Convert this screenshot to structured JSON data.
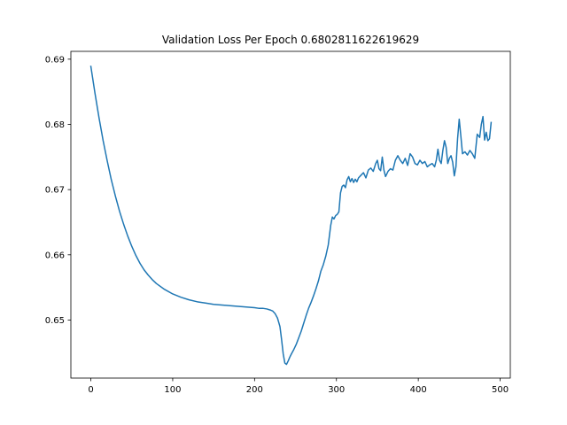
{
  "chart_data": {
    "type": "line",
    "title": "Validation Loss Per Epoch 0.6802811622619629",
    "xlabel": "",
    "ylabel": "",
    "xlim": [
      -24.4,
      512.4
    ],
    "ylim": [
      0.6411,
      0.6912
    ],
    "x_ticks": [
      0,
      100,
      200,
      300,
      400,
      500
    ],
    "x_tick_labels": [
      "0",
      "100",
      "200",
      "300",
      "400",
      "500"
    ],
    "y_ticks": [
      0.65,
      0.66,
      0.67,
      0.68,
      0.69
    ],
    "y_tick_labels": [
      "0.65",
      "0.66",
      "0.67",
      "0.68",
      "0.69"
    ],
    "grid": false,
    "line_color": "#1f77b4",
    "series": [
      {
        "x": [
          0,
          5,
          10,
          15,
          20,
          25,
          30,
          35,
          40,
          45,
          50,
          55,
          60,
          65,
          70,
          75,
          80,
          90,
          100,
          110,
          120,
          130,
          140,
          150,
          160,
          170,
          180,
          190,
          200,
          205,
          210,
          215,
          220,
          222,
          225,
          228,
          231,
          233,
          235,
          237,
          239,
          241,
          243,
          245,
          248,
          251,
          254,
          257,
          260,
          263,
          266,
          269,
          272,
          275,
          278,
          281,
          284,
          287,
          290,
          293,
          295,
          297,
          299,
          301,
          303,
          305,
          307,
          309,
          311,
          313,
          315,
          317,
          319,
          321,
          323,
          325,
          327,
          330,
          333,
          336,
          339,
          342,
          345,
          348,
          350,
          352,
          354,
          356,
          358,
          360,
          363,
          366,
          369,
          372,
          375,
          378,
          381,
          384,
          387,
          390,
          393,
          396,
          399,
          402,
          405,
          408,
          411,
          414,
          417,
          420,
          422,
          424,
          426,
          428,
          430,
          432,
          434,
          436,
          438,
          440,
          442,
          444,
          446,
          448,
          450,
          452,
          454,
          457,
          460,
          463,
          466,
          469,
          472,
          475,
          477,
          479,
          481,
          483,
          485,
          487,
          489
        ],
        "y": [
          0.6889,
          0.6848,
          0.681,
          0.6775,
          0.6744,
          0.6715,
          0.669,
          0.6667,
          0.6647,
          0.6629,
          0.6613,
          0.6599,
          0.6587,
          0.6577,
          0.6569,
          0.6562,
          0.6556,
          0.6547,
          0.654,
          0.6535,
          0.6531,
          0.6528,
          0.6526,
          0.6524,
          0.6523,
          0.6522,
          0.6521,
          0.652,
          0.6519,
          0.6518,
          0.6518,
          0.6517,
          0.6515,
          0.6514,
          0.651,
          0.6503,
          0.649,
          0.647,
          0.6448,
          0.6434,
          0.6432,
          0.6437,
          0.6443,
          0.6448,
          0.6455,
          0.6463,
          0.6473,
          0.6483,
          0.6495,
          0.6507,
          0.6518,
          0.6527,
          0.6537,
          0.6548,
          0.656,
          0.6575,
          0.6585,
          0.6598,
          0.6615,
          0.6645,
          0.6658,
          0.6655,
          0.666,
          0.6662,
          0.6666,
          0.6695,
          0.6705,
          0.6707,
          0.6703,
          0.6715,
          0.672,
          0.6712,
          0.6717,
          0.6711,
          0.6716,
          0.6712,
          0.6718,
          0.6722,
          0.6726,
          0.6718,
          0.673,
          0.6733,
          0.6728,
          0.674,
          0.6745,
          0.6732,
          0.6729,
          0.675,
          0.673,
          0.672,
          0.6728,
          0.6732,
          0.673,
          0.6745,
          0.6752,
          0.6745,
          0.674,
          0.6748,
          0.6737,
          0.6755,
          0.675,
          0.674,
          0.6738,
          0.6745,
          0.674,
          0.6743,
          0.6735,
          0.6738,
          0.674,
          0.6735,
          0.6745,
          0.6762,
          0.6745,
          0.674,
          0.676,
          0.6775,
          0.6765,
          0.674,
          0.6748,
          0.6752,
          0.6742,
          0.6721,
          0.6735,
          0.6778,
          0.6808,
          0.6782,
          0.6755,
          0.6758,
          0.6753,
          0.676,
          0.6755,
          0.6748,
          0.6785,
          0.678,
          0.68,
          0.6812,
          0.6776,
          0.6788,
          0.6775,
          0.6778,
          0.6803
        ]
      }
    ]
  }
}
